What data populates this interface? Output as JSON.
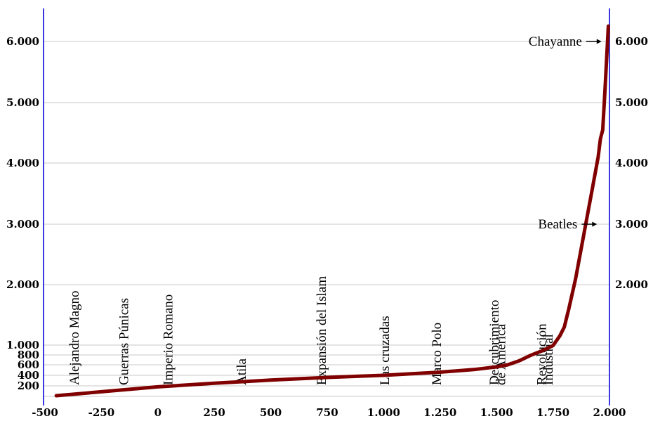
{
  "chart_data": {
    "type": "line",
    "x_ticks": [
      -500,
      -250,
      0,
      250,
      500,
      750,
      1000,
      1250,
      1500,
      1750,
      2000
    ],
    "x_tick_labels": [
      "-500",
      "-250",
      "0",
      "250",
      "500",
      "750",
      "1.000",
      "1.250",
      "1.500",
      "1.750",
      "2.000"
    ],
    "xlim": [
      -500,
      2000
    ],
    "ylim": [
      100,
      6400
    ],
    "left_ticks": [
      {
        "value": 200,
        "label": "200"
      },
      {
        "value": 400,
        "label": "400"
      },
      {
        "value": 600,
        "label": "600"
      },
      {
        "value": 800,
        "label": "800"
      },
      {
        "value": 1000,
        "label": "1.000"
      },
      {
        "value": 2000,
        "label": "2.000"
      },
      {
        "value": 3000,
        "label": "3.000"
      },
      {
        "value": 4000,
        "label": "4.000"
      },
      {
        "value": 5000,
        "label": "5.000"
      },
      {
        "value": 6000,
        "label": "6.000"
      }
    ],
    "right_ticks": [
      {
        "value": 2000,
        "label": "2.000"
      },
      {
        "value": 3000,
        "label": "3.000"
      },
      {
        "value": 4000,
        "label": "4.000"
      },
      {
        "value": 5000,
        "label": "5.000"
      },
      {
        "value": 6000,
        "label": "6.000"
      }
    ],
    "grid": true,
    "line_color": "#800000",
    "axis_color": "#3a3ae0",
    "series": [
      {
        "x": [
          -450,
          -250,
          0,
          250,
          500,
          750,
          1000,
          1250,
          1400,
          1500,
          1550,
          1600,
          1650,
          1700,
          1750,
          1780,
          1800,
          1820,
          1850,
          1880,
          1900,
          1920,
          1950,
          1960,
          1970,
          1980,
          1990,
          1995
        ],
        "y": [
          100,
          140,
          190,
          250,
          310,
          360,
          400,
          460,
          510,
          560,
          600,
          680,
          790,
          880,
          990,
          1150,
          1300,
          1600,
          2100,
          2700,
          3100,
          3500,
          4100,
          4400,
          4550,
          5200,
          5900,
          6250
        ]
      }
    ],
    "events": [
      {
        "label": "Alejandro Magno",
        "year": -370
      },
      {
        "label": "Guerras Púnicas",
        "year": -150
      },
      {
        "label": "Imperio Romano",
        "year": 45
      },
      {
        "label": "Atila",
        "year": 370
      },
      {
        "label": "Expansión del Islam",
        "year": 725
      },
      {
        "label": "Las cruzadas",
        "year": 1005
      },
      {
        "label": "Marco Polo",
        "year": 1235
      },
      {
        "label": "Descubrimiento",
        "year": 1490
      },
      {
        "label": "de América",
        "year": 1520
      },
      {
        "label": "Revolución",
        "year": 1700
      },
      {
        "label": "Industrial",
        "year": 1730
      }
    ],
    "callouts": [
      {
        "label": "Beatles",
        "x": 1970,
        "y": 3000
      },
      {
        "label": "Chayanne",
        "x": 1990,
        "y": 6000
      }
    ]
  }
}
